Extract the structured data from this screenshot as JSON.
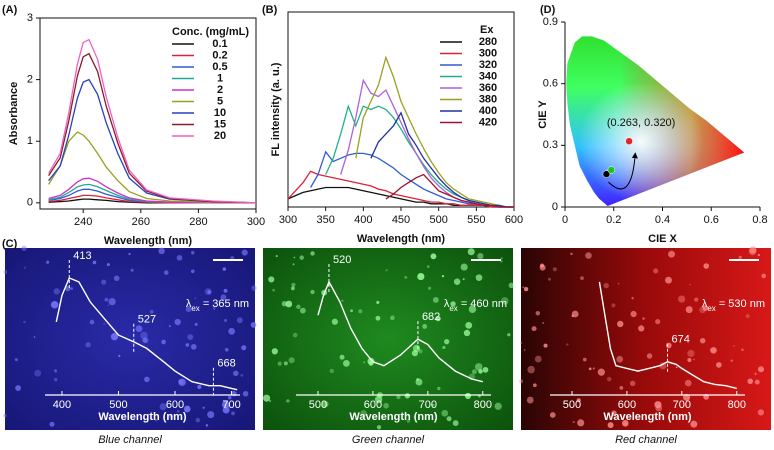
{
  "chart_data": [
    {
      "type": "line",
      "panel_label": "(A)",
      "xlabel": "Wavelength (nm)",
      "ylabel": "Absorbance",
      "legend_title": "Conc. (mg/mL)",
      "x": [
        228,
        232,
        235,
        238,
        240,
        242,
        245,
        248,
        252,
        256,
        262,
        270,
        285,
        300
      ],
      "xlim": [
        225,
        300
      ],
      "xticks": [
        240,
        260,
        280,
        300
      ],
      "ylim": [
        -0.1,
        3
      ],
      "yticks": [
        0,
        1,
        2,
        3
      ],
      "series": [
        {
          "name": "0.1",
          "color": "#111111",
          "values": [
            0.01,
            0.02,
            0.03,
            0.05,
            0.06,
            0.06,
            0.05,
            0.04,
            0.02,
            0.01,
            0,
            0,
            0,
            0
          ]
        },
        {
          "name": "0.2",
          "color": "#e0203a",
          "values": [
            0.02,
            0.04,
            0.07,
            0.1,
            0.12,
            0.12,
            0.11,
            0.08,
            0.05,
            0.02,
            0.01,
            0,
            0,
            0
          ]
        },
        {
          "name": "0.5",
          "color": "#2f5bd6",
          "values": [
            0.04,
            0.07,
            0.12,
            0.19,
            0.22,
            0.22,
            0.19,
            0.14,
            0.09,
            0.04,
            0.02,
            0.01,
            0,
            0
          ]
        },
        {
          "name": "1",
          "color": "#1fa89a",
          "values": [
            0.05,
            0.09,
            0.17,
            0.26,
            0.29,
            0.3,
            0.26,
            0.2,
            0.12,
            0.06,
            0.02,
            0.01,
            0,
            0
          ]
        },
        {
          "name": "2",
          "color": "#d030c0",
          "values": [
            0.07,
            0.12,
            0.22,
            0.34,
            0.39,
            0.4,
            0.35,
            0.26,
            0.16,
            0.08,
            0.03,
            0.01,
            0,
            0
          ]
        },
        {
          "name": "5",
          "color": "#9aa020",
          "values": [
            0.3,
            0.6,
            1.0,
            1.15,
            1.1,
            1.0,
            0.8,
            0.58,
            0.36,
            0.18,
            0.07,
            0.03,
            0.01,
            0
          ]
        },
        {
          "name": "10",
          "color": "#2840c0",
          "values": [
            0.36,
            0.6,
            1.1,
            1.7,
            1.96,
            2.0,
            1.76,
            1.3,
            0.8,
            0.4,
            0.16,
            0.06,
            0.02,
            0
          ]
        },
        {
          "name": "15",
          "color": "#8a1a2a",
          "values": [
            0.44,
            0.73,
            1.33,
            2.06,
            2.37,
            2.42,
            2.13,
            1.57,
            0.97,
            0.48,
            0.19,
            0.07,
            0.02,
            0
          ]
        },
        {
          "name": "20",
          "color": "#f060c0",
          "values": [
            0.48,
            0.8,
            1.46,
            2.25,
            2.6,
            2.65,
            2.33,
            1.72,
            1.06,
            0.53,
            0.21,
            0.08,
            0.03,
            0
          ]
        }
      ]
    },
    {
      "type": "line",
      "panel_label": "(B)",
      "xlabel": "Wavelength (nm)",
      "ylabel": "FL intensity (a. u.)",
      "legend_title": "Ex",
      "x": [
        300,
        310,
        320,
        330,
        340,
        350,
        360,
        370,
        380,
        390,
        400,
        410,
        420,
        430,
        440,
        450,
        460,
        470,
        480,
        490,
        500,
        510,
        520,
        530,
        540,
        550,
        560,
        570,
        580,
        590,
        600
      ],
      "xlim": [
        300,
        600
      ],
      "xticks": [
        300,
        350,
        400,
        450,
        500,
        550,
        600
      ],
      "ylim": [
        0,
        1.2
      ],
      "series": [
        {
          "name": "280",
          "color": "#111111",
          "values": [
            0.05,
            0.07,
            0.09,
            0.1,
            0.11,
            0.12,
            0.12,
            0.12,
            0.12,
            0.11,
            0.1,
            0.09,
            0.08,
            0.07,
            0.06,
            0.05,
            0.04,
            0.03,
            0.03,
            0.02,
            0.02,
            0.02,
            0.01,
            0.01,
            0.01,
            0.01,
            0.01,
            0,
            0,
            0,
            0
          ]
        },
        {
          "name": "300",
          "color": "#e0203a",
          "values": [
            0.05,
            0.1,
            0.15,
            0.22,
            0.2,
            0.19,
            0.18,
            0.17,
            0.16,
            0.15,
            0.14,
            0.13,
            0.11,
            0.1,
            0.08,
            0.07,
            0.06,
            0.05,
            0.04,
            0.03,
            0.03,
            0.02,
            0.02,
            0.01,
            0.01,
            0.01,
            0.01,
            0,
            0,
            0,
            0
          ]
        },
        {
          "name": "320",
          "color": "#2f5bd6",
          "values": [
            null,
            null,
            null,
            0.12,
            0.2,
            0.34,
            0.28,
            0.3,
            0.32,
            0.33,
            0.33,
            0.32,
            0.3,
            0.27,
            0.24,
            0.2,
            0.17,
            0.14,
            0.11,
            0.09,
            0.07,
            0.05,
            0.04,
            0.03,
            0.02,
            0.02,
            0.01,
            0.01,
            0,
            0,
            0
          ]
        },
        {
          "name": "340",
          "color": "#1fb08a",
          "values": [
            null,
            null,
            null,
            null,
            null,
            0.2,
            0.3,
            0.45,
            0.62,
            0.5,
            0.62,
            0.6,
            0.62,
            0.6,
            0.55,
            0.48,
            0.4,
            0.33,
            0.26,
            0.2,
            0.15,
            0.11,
            0.08,
            0.06,
            0.04,
            0.03,
            0.02,
            0.01,
            0.01,
            0,
            0
          ]
        },
        {
          "name": "360",
          "color": "#b060d8",
          "values": [
            null,
            null,
            null,
            null,
            null,
            null,
            null,
            0.2,
            0.35,
            0.55,
            0.78,
            0.7,
            0.68,
            0.72,
            0.62,
            0.52,
            0.42,
            0.33,
            0.25,
            0.18,
            0.13,
            0.09,
            0.06,
            0.04,
            0.03,
            0.02,
            0.01,
            0.01,
            0,
            0,
            0
          ]
        },
        {
          "name": "380",
          "color": "#9aa020",
          "values": [
            null,
            null,
            null,
            null,
            null,
            null,
            null,
            null,
            null,
            0.3,
            0.55,
            0.65,
            0.75,
            0.92,
            0.8,
            0.65,
            0.55,
            0.45,
            0.36,
            0.28,
            0.21,
            0.15,
            0.11,
            0.08,
            0.05,
            0.04,
            0.03,
            0.02,
            0.01,
            0,
            0
          ]
        },
        {
          "name": "400",
          "color": "#2030a0",
          "values": [
            null,
            null,
            null,
            null,
            null,
            null,
            null,
            null,
            null,
            null,
            null,
            0.3,
            0.4,
            0.45,
            0.5,
            0.58,
            0.45,
            0.38,
            0.3,
            0.24,
            0.18,
            0.13,
            0.09,
            0.06,
            0.04,
            0.03,
            0.02,
            0.01,
            0.01,
            0,
            0
          ]
        },
        {
          "name": "420",
          "color": "#a01030",
          "values": [
            null,
            null,
            null,
            null,
            null,
            null,
            null,
            null,
            null,
            null,
            null,
            null,
            null,
            0.05,
            0.08,
            0.12,
            0.15,
            0.18,
            0.2,
            0.15,
            0.1,
            0.08,
            0.06,
            0.04,
            0.03,
            0.02,
            0.01,
            0.01,
            0,
            0,
            0
          ]
        }
      ]
    },
    {
      "type": "scatter",
      "panel_label": "(D)",
      "xlabel": "CIE X",
      "ylabel": "CIE Y",
      "xlim": [
        0,
        0.8
      ],
      "xticks": [
        0,
        0.2,
        0.4,
        0.6,
        0.8
      ],
      "ylim": [
        0,
        0.9
      ],
      "yticks": [
        0,
        0.3,
        0.6,
        0.9
      ],
      "x": [
        0.17,
        0.19,
        0.263
      ],
      "values": [
        0.16,
        0.18,
        0.32
      ],
      "colors": [
        "#000000",
        "#20c020",
        "#e02828"
      ],
      "annotation": "(0.263, 0.320)"
    },
    {
      "type": "line",
      "panel_label": "(C)",
      "caption": "Blue channel",
      "xlabel": "Wavelength (nm)",
      "x": [
        390,
        400,
        413,
        430,
        450,
        480,
        500,
        527,
        550,
        580,
        600,
        630,
        660,
        680,
        700,
        710
      ],
      "values": [
        0.55,
        0.75,
        0.88,
        0.85,
        0.7,
        0.55,
        0.45,
        0.4,
        0.35,
        0.25,
        0.18,
        0.1,
        0.07,
        0.07,
        0.05,
        0.04
      ],
      "color": "#ffffff",
      "xlim": [
        370,
        715
      ],
      "xticks": [
        400,
        500,
        600,
        700
      ],
      "ylim": [
        0,
        1
      ],
      "peaks": [
        413,
        527,
        668
      ],
      "excitation": {
        "symbol": "λ",
        "sub": "ex",
        "text": " = 365 nm"
      }
    },
    {
      "type": "line",
      "caption": "Green channel",
      "xlabel": "Wavelength (nm)",
      "x": [
        500,
        510,
        520,
        540,
        560,
        580,
        600,
        620,
        650,
        682,
        700,
        720,
        750,
        780,
        800
      ],
      "values": [
        0.6,
        0.75,
        0.85,
        0.7,
        0.5,
        0.35,
        0.25,
        0.22,
        0.3,
        0.42,
        0.38,
        0.28,
        0.18,
        0.12,
        0.1
      ],
      "color": "#ffffff",
      "xlim": [
        460,
        815
      ],
      "xticks": [
        500,
        600,
        700,
        800
      ],
      "ylim": [
        0,
        1
      ],
      "peaks": [
        520,
        682
      ],
      "excitation": {
        "symbol": "λ",
        "sub": "ex",
        "text": " = 460 nm"
      }
    },
    {
      "type": "line",
      "caption": "Red channel",
      "xlabel": "Wavelength (nm)",
      "x": [
        550,
        560,
        570,
        580,
        600,
        620,
        640,
        660,
        674,
        690,
        700,
        720,
        740,
        760,
        780,
        800
      ],
      "values": [
        0.85,
        0.6,
        0.35,
        0.22,
        0.2,
        0.18,
        0.2,
        0.22,
        0.25,
        0.23,
        0.2,
        0.15,
        0.1,
        0.08,
        0.07,
        0.05
      ],
      "color": "#ffffff",
      "xlim": [
        460,
        815
      ],
      "xticks": [
        500,
        600,
        700,
        800
      ],
      "ylim": [
        0,
        1
      ],
      "peaks": [
        674
      ],
      "excitation": {
        "symbol": "λ",
        "sub": "ex",
        "text": " = 530 nm"
      }
    }
  ]
}
